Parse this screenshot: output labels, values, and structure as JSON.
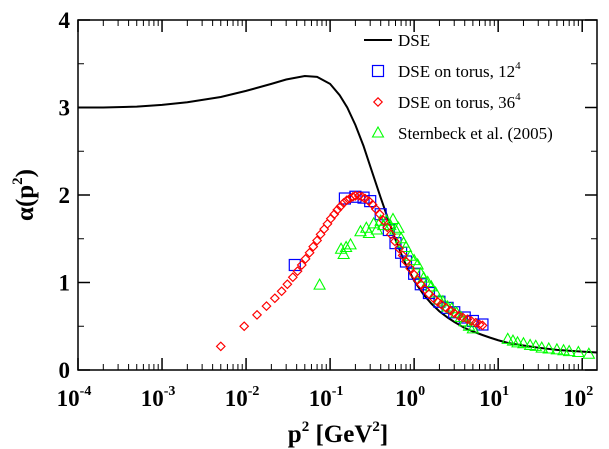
{
  "chart_data": {
    "type": "scatter",
    "x_scale": "log",
    "xlim": [
      0.0001,
      150
    ],
    "ylim": [
      0,
      4
    ],
    "xlabel": {
      "main": "p",
      "sup": "2",
      "unit_prefix": " [GeV",
      "unit_sup": "2",
      "unit_suffix": "]"
    },
    "ylabel": {
      "main": "α(p",
      "sup": "2",
      "suffix": ")"
    },
    "x_ticks": [
      {
        "value": 0.0001,
        "base": "10",
        "exp": "-4"
      },
      {
        "value": 0.001,
        "base": "10",
        "exp": "-3"
      },
      {
        "value": 0.01,
        "base": "10",
        "exp": "-2"
      },
      {
        "value": 0.1,
        "base": "10",
        "exp": "-1"
      },
      {
        "value": 1,
        "base": "10",
        "exp": "0"
      },
      {
        "value": 10,
        "base": "10",
        "exp": "1"
      },
      {
        "value": 100,
        "base": "10",
        "exp": "2"
      }
    ],
    "y_ticks": [
      {
        "value": 0,
        "label": "0"
      },
      {
        "value": 1,
        "label": "1"
      },
      {
        "value": 2,
        "label": "2"
      },
      {
        "value": 3,
        "label": "3"
      },
      {
        "value": 4,
        "label": "4"
      }
    ],
    "grid": false,
    "legend_position": "top-right",
    "series": [
      {
        "name": "DSE",
        "marker": "line",
        "color": "#000000",
        "x": [
          0.0001,
          0.0002,
          0.0005,
          0.001,
          0.002,
          0.005,
          0.01,
          0.02,
          0.03,
          0.05,
          0.07,
          0.1,
          0.13,
          0.16,
          0.2,
          0.25,
          0.3,
          0.4,
          0.5,
          0.6,
          0.7,
          0.8,
          1,
          1.3,
          1.6,
          2,
          2.5,
          3,
          4,
          5,
          6.5,
          8,
          10,
          13,
          16,
          20,
          30,
          50,
          70,
          100,
          150
        ],
        "y": [
          3.0,
          3.0,
          3.01,
          3.03,
          3.06,
          3.12,
          3.19,
          3.27,
          3.32,
          3.36,
          3.35,
          3.27,
          3.14,
          3.0,
          2.8,
          2.56,
          2.33,
          1.97,
          1.7,
          1.49,
          1.33,
          1.2,
          1.02,
          0.86,
          0.76,
          0.67,
          0.6,
          0.55,
          0.48,
          0.44,
          0.4,
          0.37,
          0.34,
          0.31,
          0.295,
          0.28,
          0.255,
          0.23,
          0.22,
          0.21,
          0.2
        ]
      },
      {
        "name": "DSE on torus, 12",
        "name_sup": "4",
        "marker": "square",
        "color": "#0000ff",
        "x": [
          0.038,
          0.15,
          0.2,
          0.25,
          0.3,
          0.4,
          0.5,
          0.6,
          0.7,
          0.8,
          1,
          1.2,
          1.5,
          2,
          2.5,
          3,
          4,
          5,
          6.5
        ],
        "y": [
          1.2,
          1.96,
          1.98,
          1.97,
          1.93,
          1.78,
          1.6,
          1.45,
          1.34,
          1.24,
          1.1,
          0.98,
          0.88,
          0.78,
          0.71,
          0.66,
          0.6,
          0.56,
          0.52
        ]
      },
      {
        "name": "DSE on torus, 36",
        "name_sup": "4",
        "marker": "diamond",
        "color": "#ff0000",
        "x": [
          0.005,
          0.0095,
          0.0135,
          0.0175,
          0.022,
          0.0265,
          0.031,
          0.036,
          0.041,
          0.046,
          0.051,
          0.057,
          0.063,
          0.07,
          0.077,
          0.085,
          0.093,
          0.102,
          0.112,
          0.122,
          0.133,
          0.145,
          0.158,
          0.172,
          0.187,
          0.2,
          0.22,
          0.24,
          0.26,
          0.29,
          0.32,
          0.35,
          0.39,
          0.43,
          0.48,
          0.53,
          0.59,
          0.66,
          0.73,
          0.8,
          0.9,
          1,
          1.1,
          1.2,
          1.35,
          1.5,
          1.7,
          1.9,
          2.1,
          2.4,
          2.7,
          3,
          3.4,
          3.8,
          4.3,
          4.8,
          5.4,
          6,
          6.5
        ],
        "y": [
          0.27,
          0.5,
          0.63,
          0.73,
          0.82,
          0.9,
          0.98,
          1.06,
          1.13,
          1.2,
          1.27,
          1.34,
          1.41,
          1.48,
          1.55,
          1.61,
          1.67,
          1.73,
          1.78,
          1.83,
          1.87,
          1.91,
          1.94,
          1.96,
          1.98,
          1.99,
          1.99,
          1.98,
          1.96,
          1.93,
          1.89,
          1.84,
          1.78,
          1.71,
          1.63,
          1.55,
          1.47,
          1.39,
          1.31,
          1.24,
          1.16,
          1.09,
          1.03,
          0.98,
          0.92,
          0.87,
          0.82,
          0.78,
          0.75,
          0.71,
          0.68,
          0.65,
          0.62,
          0.6,
          0.58,
          0.56,
          0.54,
          0.52,
          0.51
        ]
      },
      {
        "name": "Sternbeck et al. (2005)",
        "marker": "triangle",
        "color": "#00ff00",
        "x": [
          0.075,
          0.135,
          0.145,
          0.155,
          0.175,
          0.23,
          0.27,
          0.29,
          0.33,
          0.36,
          0.4,
          0.43,
          0.47,
          0.52,
          0.56,
          0.6,
          0.65,
          0.7,
          0.75,
          0.8,
          0.9,
          1,
          1.1,
          1.2,
          1.3,
          1.45,
          1.6,
          1.8,
          2,
          2.2,
          2.5,
          2.8,
          3.2,
          3.6,
          4,
          4.5,
          5,
          13,
          15,
          17,
          20,
          24,
          28,
          33,
          40,
          50,
          60,
          70,
          90,
          120
        ],
        "y": [
          0.97,
          1.38,
          1.32,
          1.4,
          1.43,
          1.58,
          1.62,
          1.56,
          1.67,
          1.6,
          1.7,
          1.65,
          1.7,
          1.65,
          1.72,
          1.6,
          1.62,
          1.5,
          1.45,
          1.4,
          1.3,
          1.25,
          1.2,
          1.1,
          1.05,
          1.0,
          0.95,
          0.88,
          0.8,
          0.78,
          0.72,
          0.7,
          0.65,
          0.6,
          0.55,
          0.5,
          0.47,
          0.35,
          0.33,
          0.31,
          0.3,
          0.28,
          0.27,
          0.25,
          0.24,
          0.23,
          0.22,
          0.21,
          0.2,
          0.18
        ]
      }
    ]
  }
}
